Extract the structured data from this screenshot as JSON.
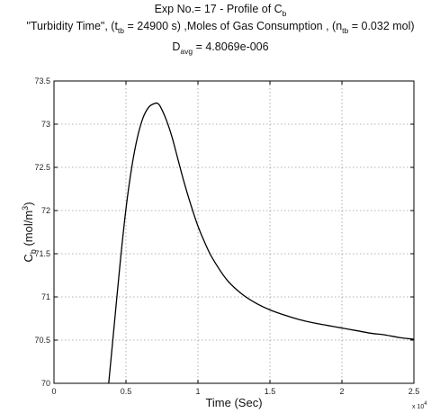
{
  "chart_data": {
    "type": "line",
    "title_lines": [
      {
        "parts": [
          "Exp No.= 17 - Profile of C",
          "b",
          ""
        ]
      },
      {
        "parts": [
          "\"Turbidity Time\", (t",
          "tb",
          " = 24900 s) ,Moles of Gas Consumption , (n",
          "tb",
          " = 0.032 mol)"
        ]
      },
      {
        "parts": [
          "D",
          "avg",
          " = 4.8069e-006"
        ]
      }
    ],
    "xlabel": "Time (Sec)",
    "ylabel": {
      "main": "C",
      "sub": "b",
      "unit_pre": " (mol/m",
      "unit_sup": "3",
      "unit_post": ")"
    },
    "x_multiplier": "x 10",
    "x_multiplier_exp": "4",
    "xlim": [
      0,
      2.5
    ],
    "ylim": [
      70,
      73.5
    ],
    "x_ticks": [
      0,
      0.5,
      1,
      1.5,
      2,
      2.5
    ],
    "x_tick_labels": [
      "0",
      "0.5",
      "1",
      "1.5",
      "2",
      "2.5"
    ],
    "y_ticks": [
      70,
      70.5,
      71,
      71.5,
      72,
      72.5,
      73,
      73.5
    ],
    "y_tick_labels": [
      "70",
      "70.5",
      "71",
      "71.5",
      "72",
      "72.5",
      "73",
      "73.5"
    ],
    "grid": true,
    "series": [
      {
        "x": [
          0.38,
          0.42,
          0.46,
          0.5,
          0.54,
          0.58,
          0.62,
          0.66,
          0.7,
          0.72,
          0.74,
          0.78,
          0.82,
          0.86,
          0.9,
          0.95,
          1.0,
          1.05,
          1.1,
          1.2,
          1.3,
          1.4,
          1.5,
          1.6,
          1.7,
          1.8,
          1.9,
          2.0,
          2.1,
          2.2,
          2.3,
          2.4,
          2.5
        ],
        "y": [
          70.0,
          70.7,
          71.4,
          72.02,
          72.5,
          72.85,
          73.08,
          73.2,
          73.24,
          73.24,
          73.2,
          73.05,
          72.85,
          72.6,
          72.35,
          72.07,
          71.82,
          71.62,
          71.45,
          71.2,
          71.04,
          70.93,
          70.85,
          70.79,
          70.74,
          70.7,
          70.67,
          70.64,
          70.61,
          70.58,
          70.56,
          70.53,
          70.51
        ]
      }
    ]
  }
}
